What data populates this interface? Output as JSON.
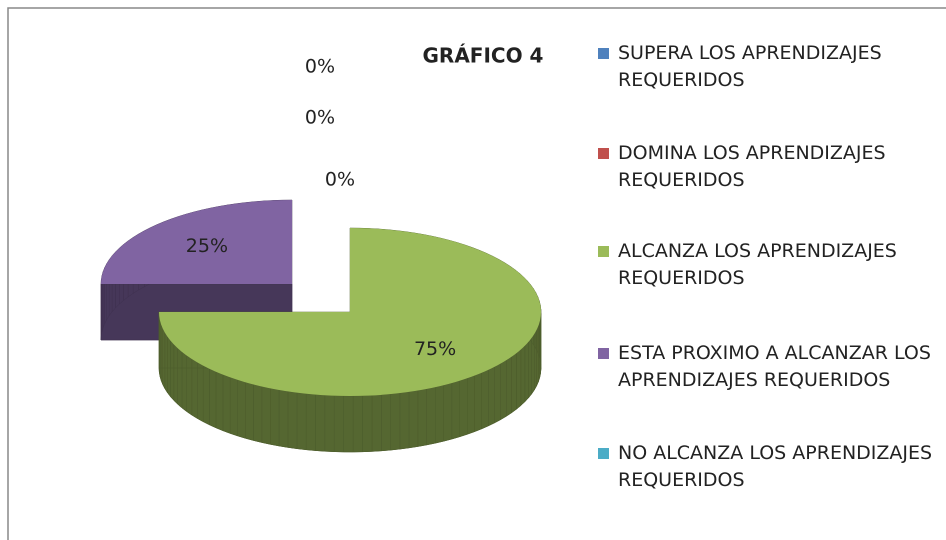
{
  "chart_data": {
    "type": "pie3d",
    "title": "GRÁFICO 4",
    "categories": [
      "SUPERA LOS APRENDIZAJES REQUERIDOS",
      "DOMINA LOS APRENDIZAJES REQUERIDOS",
      "ALCANZA LOS APRENDIZAJES REQUERIDOS",
      "ESTA PROXIMO A ALCANZAR LOS APRENDIZAJES REQUERIDOS",
      "NO ALCANZA LOS APRENDIZAJES REQUERIDOS"
    ],
    "values": [
      0,
      0,
      75,
      25,
      0
    ],
    "value_labels": [
      "0%",
      "0%",
      "75%",
      "25%",
      "0%"
    ],
    "colors": [
      "#4f81bd",
      "#c0504d",
      "#9bbb59",
      "#8064a2",
      "#4bacc6"
    ],
    "legend": "right"
  }
}
